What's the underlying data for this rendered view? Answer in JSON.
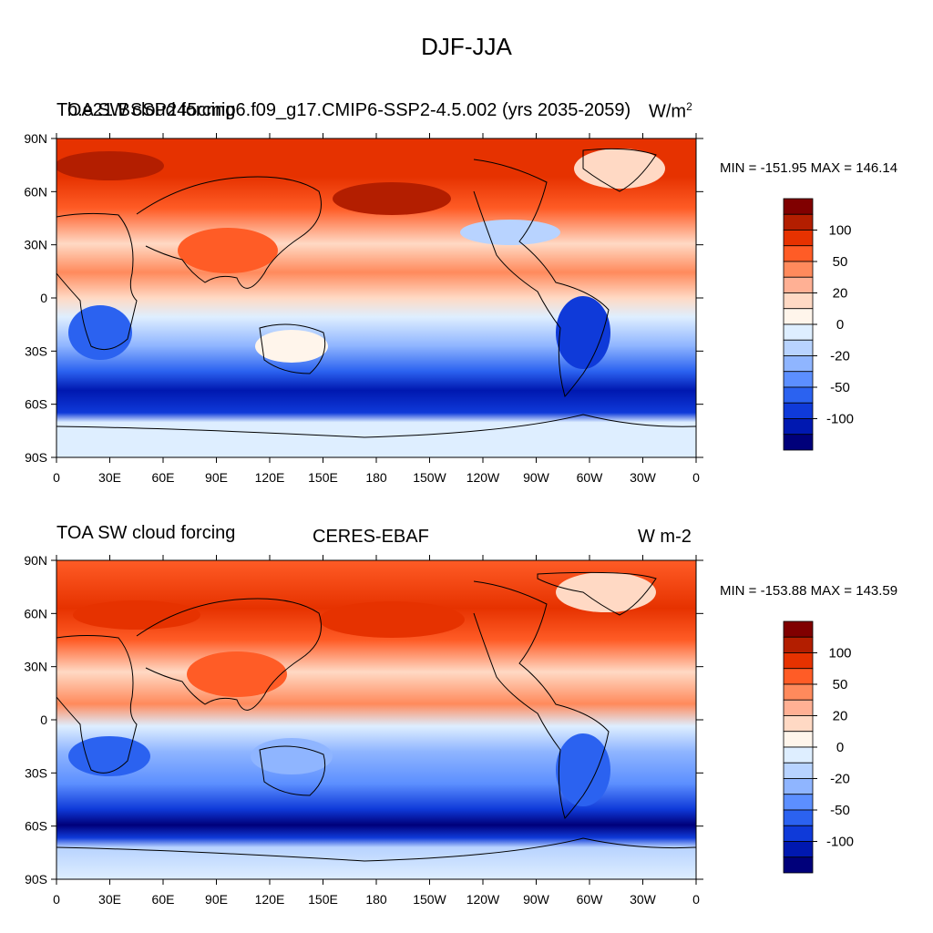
{
  "title": "DJF-JJA",
  "panels": [
    {
      "left_title": "TOA SW cloud forcing",
      "overlap_title": "b.e21.BSSP245cmip6.f09_g17.CMIP6-SSP2-4.5.002 (yrs 2035-2059)",
      "right_title": "W/m",
      "right_title_sup": "2",
      "minmax": "MIN = -151.95 MAX = 146.14"
    },
    {
      "left_title": "TOA SW cloud forcing",
      "center_title": "CERES-EBAF",
      "right_title": "W m-2",
      "minmax": "MIN = -153.88 MAX = 143.59"
    }
  ],
  "map_axes": {
    "lon_labels": [
      "0",
      "30E",
      "60E",
      "90E",
      "120E",
      "150E",
      "180",
      "150W",
      "120W",
      "90W",
      "60W",
      "30W",
      "0"
    ],
    "lat_labels": [
      "90N",
      "60N",
      "30N",
      "0",
      "30S",
      "60S",
      "90S"
    ]
  },
  "colorbar": {
    "labels": [
      "100",
      "50",
      "20",
      "0",
      "-20",
      "-50",
      "-100"
    ],
    "colors": [
      "#800000",
      "#b31e00",
      "#e63200",
      "#ff5c26",
      "#ff8a5c",
      "#ffb094",
      "#ffd9c4",
      "#fff5eb",
      "#deeeff",
      "#b8d3ff",
      "#8fb5ff",
      "#5c8fff",
      "#2b62f0",
      "#0f3ad9",
      "#0018b0",
      "#00007a"
    ]
  },
  "chart_data": {
    "type": "heatmap",
    "title": "DJF-JJA",
    "variable": "TOA SW cloud forcing",
    "units": "W/m2",
    "x_range": [
      0,
      360
    ],
    "y_range": [
      -90,
      90
    ],
    "color_levels": [
      -100,
      -50,
      -20,
      0,
      20,
      50,
      100
    ],
    "panels": [
      {
        "name": "b.e21.BSSP245cmip6.f09_g17.CMIP6-SSP2-4.5.002 (yrs 2035-2059)",
        "min": -151.95,
        "max": 146.14
      },
      {
        "name": "CERES-EBAF",
        "min": -153.88,
        "max": 143.59
      }
    ]
  }
}
